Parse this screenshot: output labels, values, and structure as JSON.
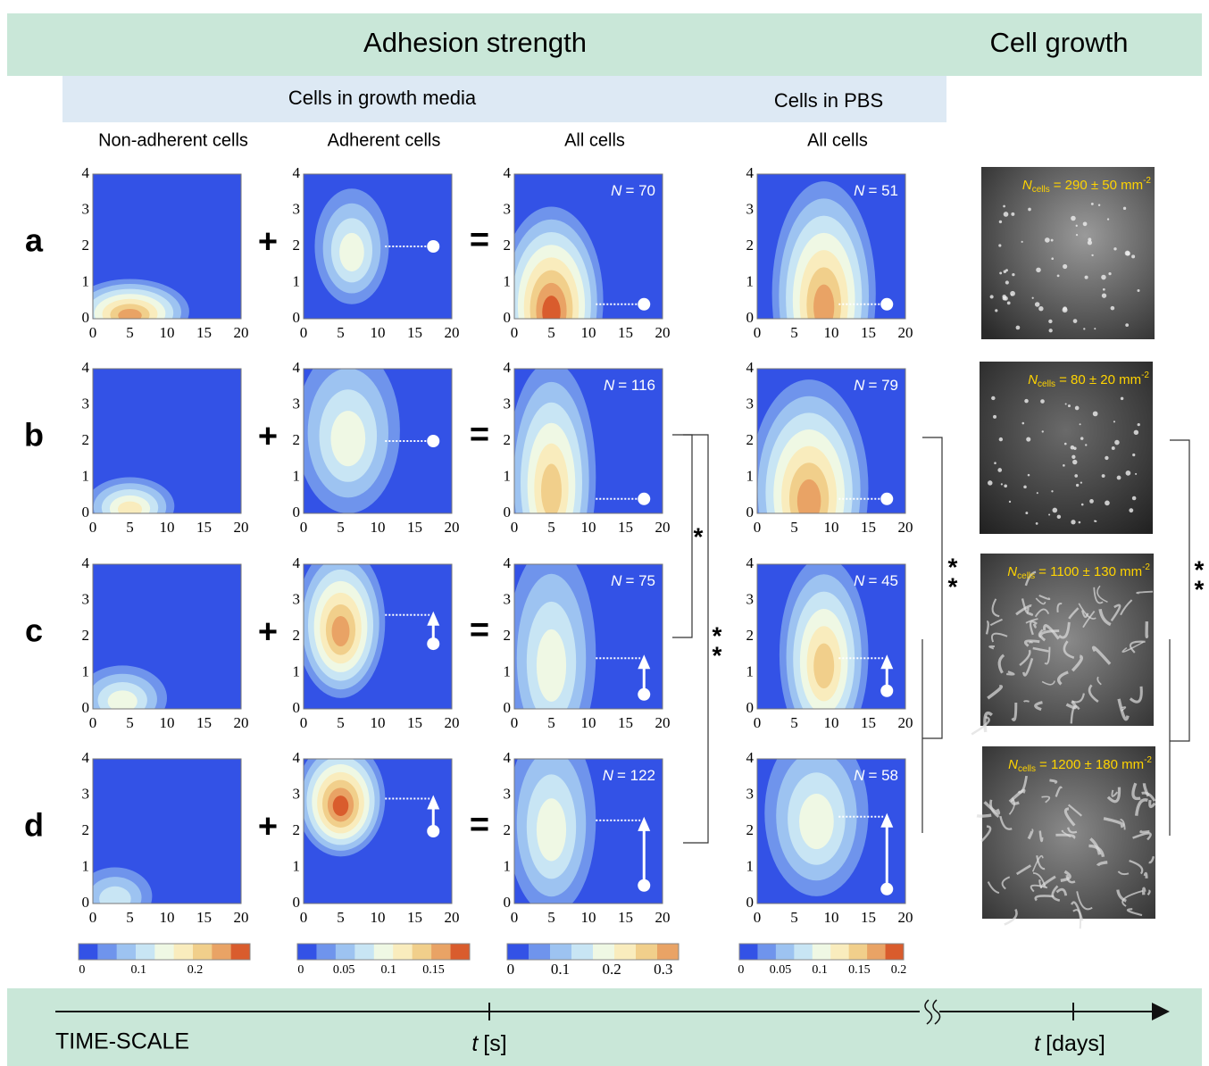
{
  "header": {
    "adhesion": "Adhesion strength",
    "growth": "Cell growth"
  },
  "groups": {
    "media": "Cells in growth media",
    "pbs": "Cells in PBS"
  },
  "columns": [
    "Non-adherent cells",
    "Adherent cells",
    "All cells",
    "All cells"
  ],
  "operators": {
    "plus": "+",
    "equals": "="
  },
  "count_symbol": "N",
  "density_symbol": {
    "symbol": "N",
    "subscript": "cells"
  },
  "rows": [
    {
      "label": "a",
      "counts": [
        "= 70",
        "= 51"
      ],
      "density": {
        "value": "= 290 ± 50 mm",
        "exponent": "-2"
      }
    },
    {
      "label": "b",
      "counts": [
        "= 116",
        "= 79"
      ],
      "density": {
        "value": "= 80 ± 20 mm",
        "exponent": "-2"
      }
    },
    {
      "label": "c",
      "counts": [
        "= 75",
        "= 45"
      ],
      "density": {
        "value": "= 1100 ± 130 mm",
        "exponent": "-2"
      }
    },
    {
      "label": "d",
      "counts": [
        "= 122",
        "= 58"
      ],
      "density": {
        "value": "= 1200 ± 180 mm",
        "exponent": "-2"
      }
    }
  ],
  "axes": {
    "x_ticks": [
      "0",
      "5",
      "10",
      "15",
      "20"
    ],
    "y_ticks": [
      "0",
      "1",
      "2",
      "3",
      "4"
    ]
  },
  "colorbars": [
    [
      "0",
      "0.1",
      "0.2"
    ],
    [
      "0",
      "0.05",
      "0.1",
      "0.15"
    ],
    [
      "0",
      "0.1",
      "0.2",
      "0.3"
    ],
    [
      "0",
      "0.05",
      "0.1",
      "0.15",
      "0.2"
    ]
  ],
  "significance": {
    "single": "*",
    "double": "*"
  },
  "timescale": {
    "label": "TIME-SCALE",
    "seconds": {
      "symbol": "t",
      "unit": "[s]"
    },
    "days": {
      "symbol": "t",
      "unit": "[days]"
    }
  }
}
